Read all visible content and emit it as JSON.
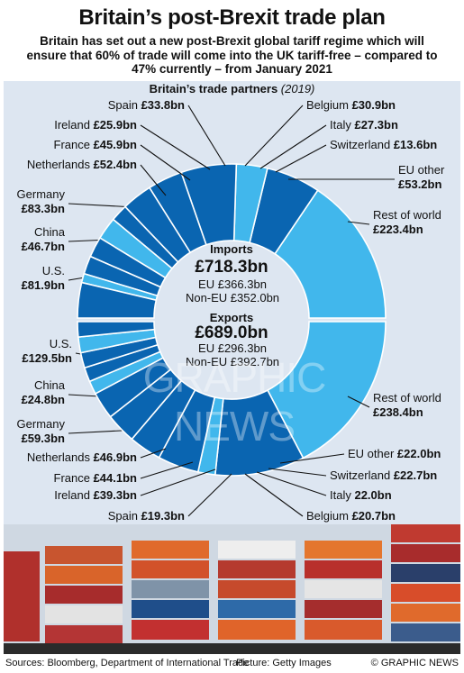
{
  "title": "Britain’s post-Brexit trade plan",
  "subtitle": "Britain has set out a new post-Brexit global tariff regime which will ensure that 60% of trade will come into the UK tariff-free – compared to 47% currently – from January 2021",
  "chart_title": "Britain’s trade partners",
  "chart_year": "(2019)",
  "watermark": "GRAPHIC NEWS",
  "colors": {
    "dark": "#0a65b1",
    "light": "#41b7ec",
    "panel": "#dde6f1",
    "leader": "#111111"
  },
  "footer": {
    "sources": "Sources: Bloomberg, Department of International Trade",
    "picture": "Picture: Getty Images",
    "credit": "© GRAPHIC NEWS"
  },
  "chart_data": [
    {
      "type": "pie",
      "name": "Imports",
      "total": "£718.3bn",
      "lines": [
        "EU £366.3bn",
        "Non-EU £352.0bn"
      ],
      "unit": "£bn",
      "slices": [
        {
          "name": "Rest of world",
          "label": "£223.4bn",
          "value": 223.4,
          "color": "light"
        },
        {
          "name": "U.S.",
          "label": "£81.9bn",
          "value": 81.9,
          "color": "dark"
        },
        {
          "name": "China",
          "label": "£46.7bn",
          "value": 46.7,
          "color": "light"
        },
        {
          "name": "Germany",
          "label": "£83.3bn",
          "value": 83.3,
          "color": "dark"
        },
        {
          "name": "Netherlands",
          "label": "£52.4bn",
          "value": 52.4,
          "color": "dark"
        },
        {
          "name": "France",
          "label": "£45.9bn",
          "value": 45.9,
          "color": "dark"
        },
        {
          "name": "Ireland",
          "label": "£25.9bn",
          "value": 25.9,
          "color": "dark"
        },
        {
          "name": "Spain",
          "label": "£33.8bn",
          "value": 33.8,
          "color": "light"
        },
        {
          "name": "Belgium",
          "label": "£30.9bn",
          "value": 30.9,
          "color": "dark"
        },
        {
          "name": "Italy",
          "label": "£27.3bn",
          "value": 27.3,
          "color": "dark"
        },
        {
          "name": "Switzerland",
          "label": "£13.6bn",
          "value": 13.6,
          "color": "light"
        },
        {
          "name": "EU other",
          "label": "£53.2bn",
          "value": 53.2,
          "color": "dark"
        }
      ]
    },
    {
      "type": "pie",
      "name": "Exports",
      "total": "£689.0bn",
      "lines": [
        "EU £296.3bn",
        "Non-EU £392.7bn"
      ],
      "unit": "£bn",
      "slices": [
        {
          "name": "Rest of world",
          "label": "£238.4bn",
          "value": 238.4,
          "color": "light"
        },
        {
          "name": "U.S.",
          "label": "£129.5bn",
          "value": 129.5,
          "color": "dark"
        },
        {
          "name": "China",
          "label": "£24.8bn",
          "value": 24.8,
          "color": "light"
        },
        {
          "name": "Germany",
          "label": "£59.3bn",
          "value": 59.3,
          "color": "dark"
        },
        {
          "name": "Netherlands",
          "label": "£46.9bn",
          "value": 46.9,
          "color": "dark"
        },
        {
          "name": "France",
          "label": "£44.1bn",
          "value": 44.1,
          "color": "dark"
        },
        {
          "name": "Ireland",
          "label": "£39.3bn",
          "value": 39.3,
          "color": "dark"
        },
        {
          "name": "Spain",
          "label": "£19.3bn",
          "value": 19.3,
          "color": "light"
        },
        {
          "name": "Belgium",
          "label": "£20.7bn",
          "value": 20.7,
          "color": "dark"
        },
        {
          "name": "Italy",
          "label": "22.0bn",
          "value": 22.0,
          "color": "dark"
        },
        {
          "name": "Switzerland",
          "label": "£22.7bn",
          "value": 22.7,
          "color": "light"
        },
        {
          "name": "EU other",
          "label": "£22.0bn",
          "value": 22.0,
          "color": "dark"
        }
      ]
    }
  ]
}
